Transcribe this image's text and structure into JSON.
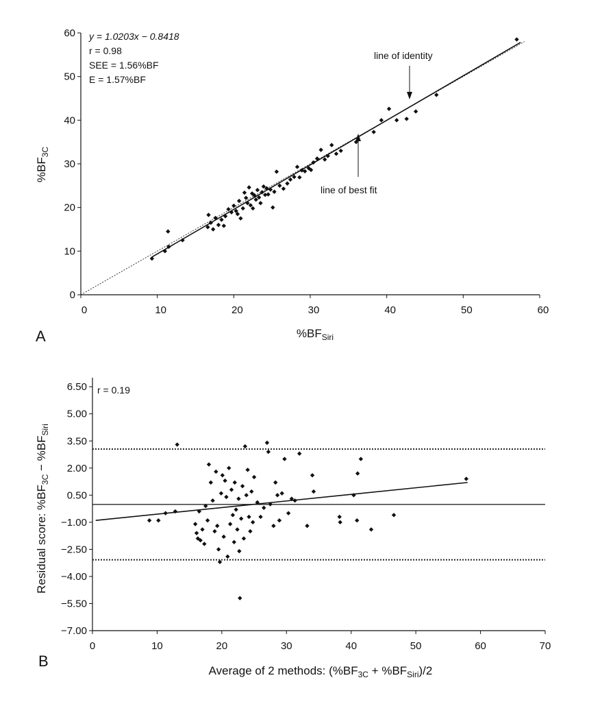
{
  "chart_data": [
    {
      "panel": "A",
      "type": "scatter",
      "xlabel": "%BF",
      "xlabel_sub": "Siri",
      "ylabel": "%BF",
      "ylabel_sub": "3C",
      "xlim": [
        0,
        60
      ],
      "ylim": [
        0,
        60
      ],
      "xticks": [
        0,
        10,
        20,
        30,
        40,
        50,
        60
      ],
      "yticks": [
        0,
        10,
        20,
        30,
        40,
        50,
        60
      ],
      "stats": [
        "y = 1.0203x − 0.8418",
        "r = 0.98",
        "SEE = 1.56%BF",
        "E = 1.57%BF"
      ],
      "annotations": [
        "line of identity",
        "line of best fit"
      ],
      "best_fit": {
        "slope": 1.0203,
        "intercept": -0.8418,
        "x_range": [
          9.3,
          57.5
        ]
      },
      "identity": {
        "x_range": [
          0,
          58
        ]
      },
      "points": [
        [
          9.3,
          8.3
        ],
        [
          11.0,
          10.0
        ],
        [
          11.4,
          14.5
        ],
        [
          11.5,
          11.0
        ],
        [
          13.3,
          12.5
        ],
        [
          16.6,
          15.5
        ],
        [
          16.7,
          18.3
        ],
        [
          17.0,
          16.5
        ],
        [
          17.3,
          15.0
        ],
        [
          17.6,
          17.6
        ],
        [
          18.0,
          16.0
        ],
        [
          18.4,
          17.2
        ],
        [
          18.7,
          15.8
        ],
        [
          18.9,
          18.0
        ],
        [
          19.3,
          19.6
        ],
        [
          19.7,
          18.9
        ],
        [
          20.0,
          20.4
        ],
        [
          20.3,
          19.2
        ],
        [
          20.5,
          18.5
        ],
        [
          20.7,
          21.5
        ],
        [
          20.9,
          17.5
        ],
        [
          21.2,
          19.8
        ],
        [
          21.4,
          23.4
        ],
        [
          21.6,
          22.2
        ],
        [
          21.8,
          21.0
        ],
        [
          22.0,
          24.6
        ],
        [
          22.2,
          20.5
        ],
        [
          22.4,
          23.2
        ],
        [
          22.5,
          19.8
        ],
        [
          22.7,
          22.8
        ],
        [
          22.9,
          21.8
        ],
        [
          23.1,
          24.0
        ],
        [
          23.3,
          22.3
        ],
        [
          23.5,
          21.0
        ],
        [
          23.7,
          23.5
        ],
        [
          23.9,
          24.8
        ],
        [
          24.1,
          22.9
        ],
        [
          24.3,
          24.4
        ],
        [
          24.5,
          23.0
        ],
        [
          24.8,
          24.1
        ],
        [
          25.1,
          20.0
        ],
        [
          25.3,
          23.6
        ],
        [
          25.6,
          28.2
        ],
        [
          26.0,
          25.0
        ],
        [
          26.5,
          24.3
        ],
        [
          27.0,
          25.5
        ],
        [
          27.4,
          26.4
        ],
        [
          27.9,
          27.0
        ],
        [
          28.3,
          29.3
        ],
        [
          28.6,
          26.9
        ],
        [
          28.9,
          28.5
        ],
        [
          29.3,
          28.3
        ],
        [
          29.8,
          29.0
        ],
        [
          30.1,
          28.6
        ],
        [
          30.4,
          30.3
        ],
        [
          30.9,
          31.2
        ],
        [
          31.4,
          33.2
        ],
        [
          31.9,
          31.0
        ],
        [
          32.3,
          31.8
        ],
        [
          32.8,
          34.3
        ],
        [
          33.4,
          32.3
        ],
        [
          34.0,
          33.0
        ],
        [
          36.0,
          35.0
        ],
        [
          38.3,
          37.3
        ],
        [
          39.3,
          40.0
        ],
        [
          40.3,
          42.6
        ],
        [
          41.3,
          40.0
        ],
        [
          42.6,
          40.3
        ],
        [
          43.8,
          42.0
        ],
        [
          46.5,
          45.8
        ],
        [
          57.0,
          58.5
        ]
      ]
    },
    {
      "panel": "B",
      "type": "scatter",
      "xlabel": "Average of 2 methods: (%BF",
      "xlabel_sub1": "3C",
      "xlabel_mid": " + %BF",
      "xlabel_sub2": "Siri",
      "xlabel_end": ")/2",
      "ylabel": "Residual score: %BF",
      "ylabel_sub1": "3C",
      "ylabel_mid": " − %BF",
      "ylabel_sub2": "Siri",
      "xlim": [
        0,
        70
      ],
      "ylim": [
        -7.0,
        7.0
      ],
      "xticks": [
        0,
        10,
        20,
        30,
        40,
        50,
        60,
        70
      ],
      "yticks": [
        6.5,
        5.0,
        3.5,
        2.0,
        0.5,
        -1.0,
        -2.5,
        -4.0,
        -5.5,
        -7.0
      ],
      "ytick_labels": [
        "6.50",
        "5.00",
        "3.50",
        "2.00",
        "0.50",
        "−1.00",
        "−2.50",
        "−4.00",
        "−5.50",
        "−7.00"
      ],
      "stats": [
        "r = 0.19"
      ],
      "mean_line": -0.015,
      "upper_limit": 3.05,
      "lower_limit": -3.08,
      "trend": {
        "x_range": [
          0.5,
          58
        ],
        "y_range": [
          -0.9,
          1.2
        ]
      },
      "points": [
        [
          8.8,
          -0.9
        ],
        [
          10.2,
          -0.9
        ],
        [
          11.3,
          -0.5
        ],
        [
          12.8,
          -0.4
        ],
        [
          13.1,
          3.3
        ],
        [
          15.9,
          -1.1
        ],
        [
          16.1,
          -1.6
        ],
        [
          16.3,
          -1.9
        ],
        [
          16.5,
          -0.4
        ],
        [
          16.7,
          -2.0
        ],
        [
          17.0,
          -1.4
        ],
        [
          17.3,
          -2.2
        ],
        [
          17.5,
          -0.1
        ],
        [
          17.8,
          -0.9
        ],
        [
          18.0,
          2.2
        ],
        [
          18.3,
          1.2
        ],
        [
          18.6,
          0.2
        ],
        [
          18.9,
          -1.5
        ],
        [
          19.1,
          1.8
        ],
        [
          19.3,
          -1.2
        ],
        [
          19.5,
          -2.5
        ],
        [
          19.7,
          -3.2
        ],
        [
          19.9,
          0.6
        ],
        [
          20.1,
          1.6
        ],
        [
          20.3,
          -1.8
        ],
        [
          20.5,
          1.3
        ],
        [
          20.7,
          0.4
        ],
        [
          20.9,
          -2.9
        ],
        [
          21.1,
          2.0
        ],
        [
          21.3,
          -1.1
        ],
        [
          21.5,
          0.8
        ],
        [
          21.7,
          -0.6
        ],
        [
          21.9,
          -2.1
        ],
        [
          22.0,
          1.2
        ],
        [
          22.2,
          -0.3
        ],
        [
          22.4,
          -1.4
        ],
        [
          22.6,
          0.3
        ],
        [
          22.7,
          -2.6
        ],
        [
          22.8,
          -5.2
        ],
        [
          23.0,
          -0.8
        ],
        [
          23.2,
          1.0
        ],
        [
          23.4,
          -1.9
        ],
        [
          23.6,
          3.2
        ],
        [
          23.8,
          0.5
        ],
        [
          24.0,
          1.9
        ],
        [
          24.2,
          -0.7
        ],
        [
          24.4,
          -1.5
        ],
        [
          24.6,
          0.7
        ],
        [
          24.8,
          -1.0
        ],
        [
          25.0,
          1.5
        ],
        [
          25.5,
          0.1
        ],
        [
          26.0,
          -0.7
        ],
        [
          26.5,
          -0.2
        ],
        [
          27.0,
          3.4
        ],
        [
          27.2,
          2.9
        ],
        [
          27.5,
          0.0
        ],
        [
          28.0,
          -1.2
        ],
        [
          28.3,
          1.2
        ],
        [
          28.6,
          0.5
        ],
        [
          28.9,
          -0.9
        ],
        [
          29.3,
          0.6
        ],
        [
          29.7,
          2.5
        ],
        [
          30.3,
          -0.5
        ],
        [
          30.8,
          0.3
        ],
        [
          31.3,
          0.2
        ],
        [
          32.0,
          2.8
        ],
        [
          33.2,
          -1.2
        ],
        [
          34.0,
          1.6
        ],
        [
          34.2,
          0.7
        ],
        [
          38.2,
          -0.7
        ],
        [
          38.3,
          -1.0
        ],
        [
          40.4,
          0.5
        ],
        [
          40.9,
          -0.9
        ],
        [
          41.0,
          1.7
        ],
        [
          41.5,
          2.5
        ],
        [
          43.1,
          -1.4
        ],
        [
          46.6,
          -0.6
        ],
        [
          57.8,
          1.4
        ]
      ]
    }
  ]
}
